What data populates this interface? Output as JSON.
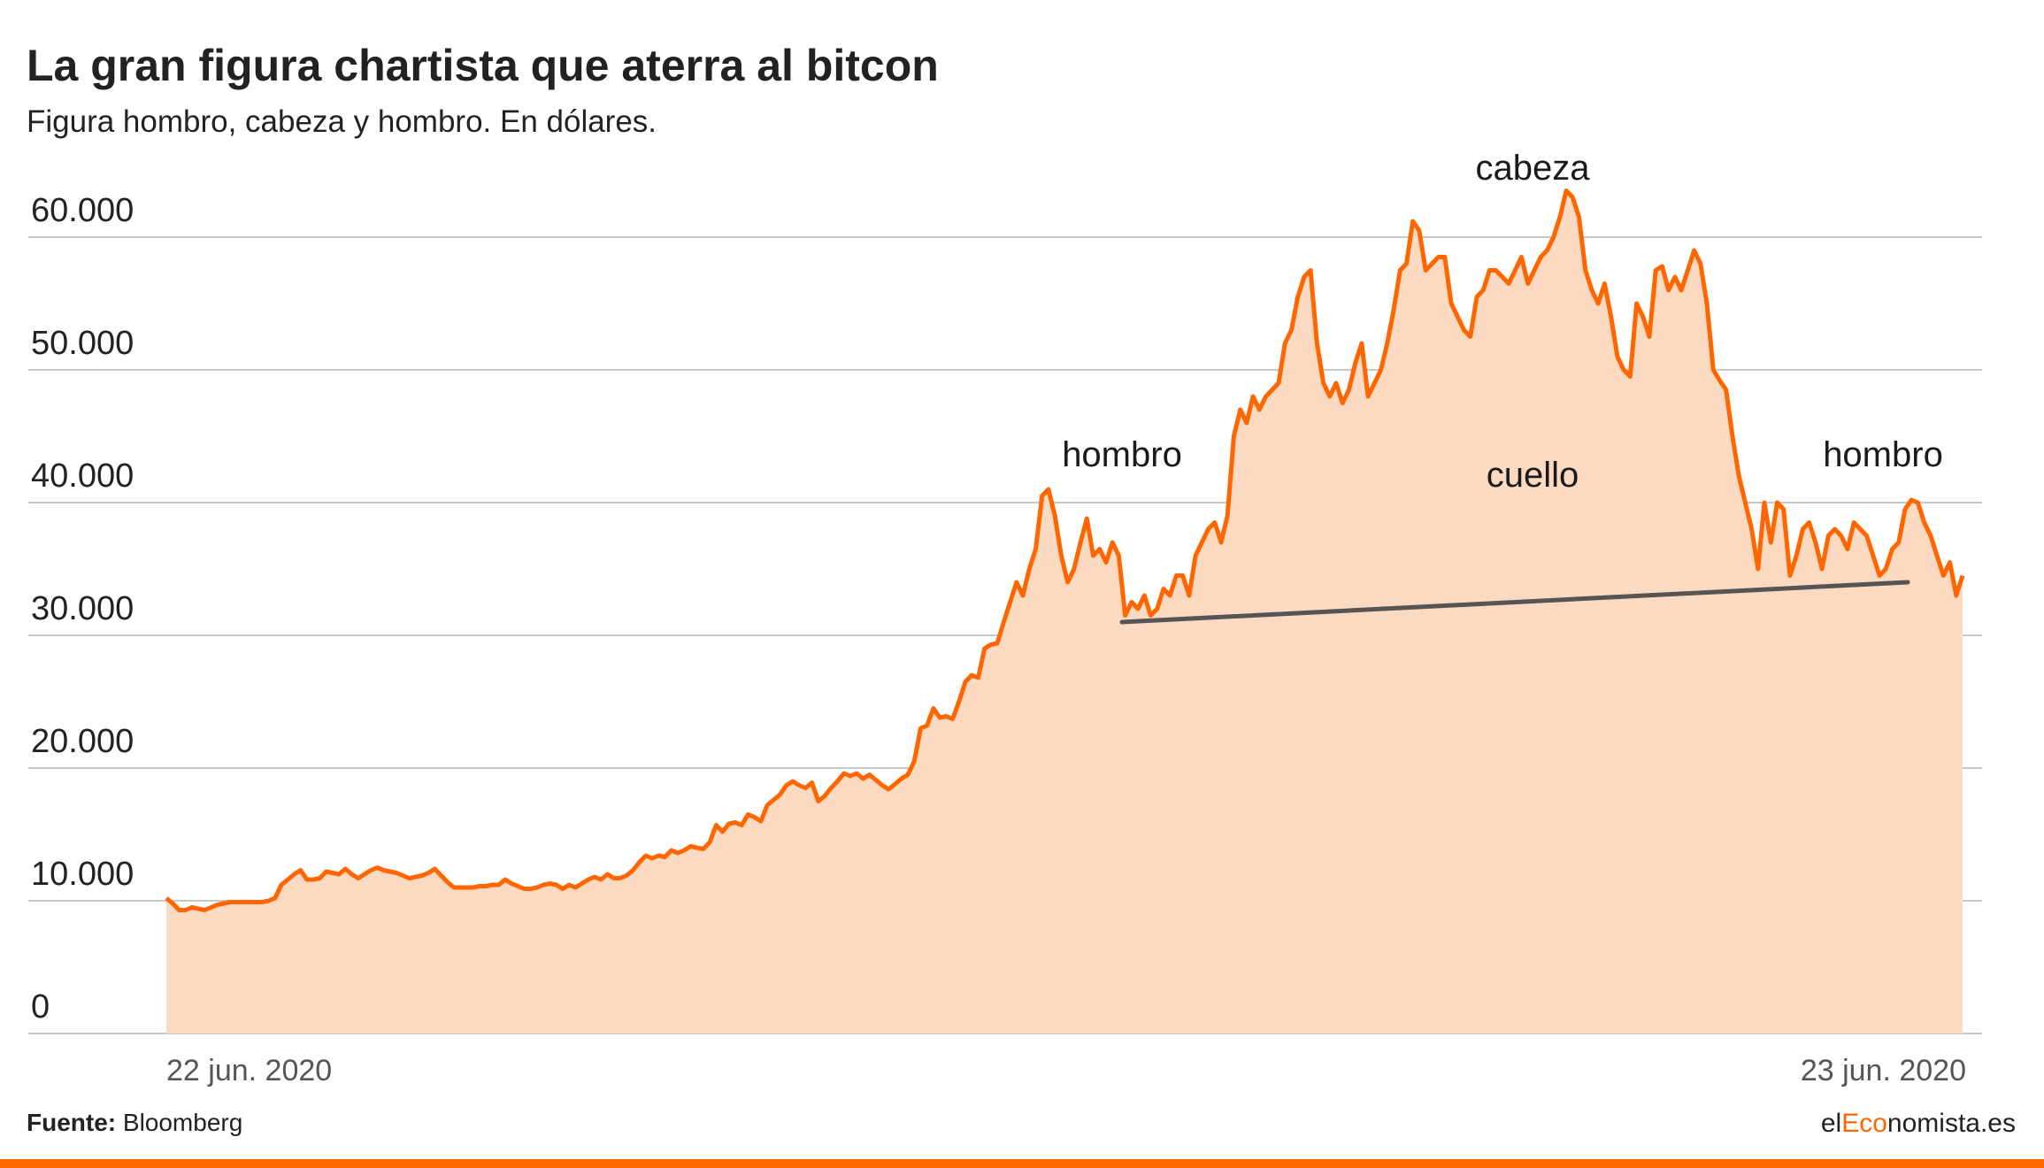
{
  "header": {
    "title": "La gran figura chartista que aterra al bitcon",
    "subtitle": "Figura hombro, cabeza y hombro. En dólares."
  },
  "footer": {
    "source_label": "Fuente:",
    "source_value": "Bloomberg",
    "brand_prefix": "el",
    "brand_accent": "Eco",
    "brand_suffix": "nomista.es"
  },
  "colors": {
    "line": "#ff6600",
    "area": "#fcd9c1",
    "grid": "#c8c8c8",
    "neckline": "#555555",
    "accent": "#ff6600"
  },
  "chart_data": {
    "type": "area",
    "title": "La gran figura chartista que aterra al bitcon",
    "subtitle": "Figura hombro, cabeza y hombro. En dólares.",
    "xlabel": "",
    "ylabel": "",
    "ylim": [
      0,
      60000
    ],
    "yticks": [
      0,
      10000,
      20000,
      30000,
      40000,
      50000,
      60000
    ],
    "ytick_labels": [
      "0",
      "10.000",
      "20.000",
      "30.000",
      "40.000",
      "50.000",
      "60.000"
    ],
    "xtick_labels": [
      "22 jun. 2020",
      "23 jun. 2020"
    ],
    "grid": true,
    "legend": "none",
    "series": [
      {
        "values": [
          10200,
          9800,
          9300,
          9300,
          9500,
          9400,
          9300,
          9500,
          9700,
          9800,
          9900,
          9900,
          9900,
          9900,
          9900,
          9900,
          10000,
          10200,
          11200,
          11600,
          12000,
          12300,
          11600,
          11600,
          11700,
          12200,
          12100,
          12000,
          12400,
          12000,
          11700,
          12000,
          12300,
          12500,
          12300,
          12200,
          12100,
          11900,
          11700,
          11800,
          11900,
          12100,
          12400,
          11900,
          11400,
          11000,
          11000,
          11000,
          11000,
          11100,
          11100,
          11200,
          11200,
          11600,
          11300,
          11100,
          10900,
          10900,
          11000,
          11200,
          11300,
          11200,
          10900,
          11200,
          11000,
          11300,
          11600,
          11800,
          11600,
          12000,
          11700,
          11700,
          11900,
          12300,
          12900,
          13400,
          13200,
          13400,
          13300,
          13800,
          13600,
          13800,
          14100,
          14000,
          13900,
          14400,
          15700,
          15200,
          15800,
          15900,
          15700,
          16500,
          16300,
          16000,
          17200,
          17600,
          18000,
          18700,
          19000,
          18700,
          18500,
          18900,
          17500,
          17900,
          18500,
          19000,
          19600,
          19400,
          19600,
          19200,
          19500,
          19100,
          18700,
          18400,
          18800,
          19200,
          19500,
          20500,
          23000,
          23200,
          24500,
          23800,
          23900,
          23700,
          25000,
          26500,
          27000,
          26800,
          29000,
          29300,
          29400,
          31000,
          32500,
          34000,
          33000,
          35000,
          36500,
          40500,
          41000,
          39000,
          36000,
          34000,
          35000,
          37000,
          38800,
          36000,
          36500,
          35500,
          37000,
          36000,
          31500,
          32500,
          32000,
          33000,
          31500,
          32000,
          33500,
          33000,
          34500,
          34500,
          33000,
          36000,
          37000,
          38000,
          38500,
          37000,
          39000,
          45000,
          47000,
          46000,
          48000,
          47000,
          48000,
          48500,
          49000,
          52000,
          53000,
          55500,
          57000,
          57500,
          52000,
          49000,
          48000,
          49000,
          47500,
          48500,
          50500,
          52000,
          48000,
          49000,
          50000,
          52000,
          54500,
          57500,
          58000,
          61200,
          60500,
          57500,
          58000,
          58500,
          58500,
          55000,
          54000,
          53000,
          52500,
          55500,
          56000,
          57500,
          57500,
          57000,
          56500,
          57500,
          58500,
          56500,
          57500,
          58500,
          59000,
          60000,
          61500,
          63500,
          63000,
          61500,
          57500,
          56000,
          55000,
          56500,
          54000,
          51000,
          50000,
          49500,
          55000,
          54000,
          52500,
          57500,
          57800,
          56000,
          57000,
          56000,
          57500,
          59000,
          58000,
          55000,
          50000,
          49200,
          48500,
          45000,
          42000,
          40000,
          38000,
          35000,
          40000,
          37000,
          40000,
          39500,
          34500,
          36000,
          38000,
          38500,
          37000,
          35000,
          37500,
          38000,
          37500,
          36500,
          38500,
          38000,
          37500,
          36000,
          34500,
          35000,
          36500,
          37000,
          39500,
          40200,
          40000,
          38500,
          37500,
          36000,
          34500,
          35500,
          33000,
          34500
        ]
      },
      {
        "name": "",
        "values": [
          31000,
          34000
        ]
      }
    ],
    "annotations": [
      "hombro",
      "cabeza",
      "cuello",
      "hombro"
    ]
  }
}
